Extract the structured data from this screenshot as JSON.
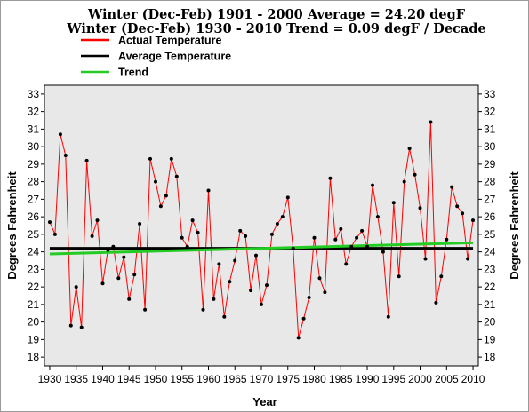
{
  "chart_data": {
    "type": "line",
    "title": "Winter (Dec-Feb) 1901 - 2000 Average = 24.20 degF",
    "subtitle": "Winter (Dec-Feb) 1930 - 2010 Trend = 0.09 degF / Decade",
    "xlabel": "Year",
    "ylabel": "Degrees Fahrenheit",
    "xlim": [
      1929,
      2011
    ],
    "ylim": [
      17.5,
      33.5
    ],
    "xticks": [
      1930,
      1935,
      1940,
      1945,
      1950,
      1955,
      1960,
      1965,
      1970,
      1975,
      1980,
      1985,
      1990,
      1995,
      2000,
      2005,
      2010
    ],
    "yticks": [
      18,
      19,
      20,
      21,
      22,
      23,
      24,
      25,
      26,
      27,
      28,
      29,
      30,
      31,
      32,
      33
    ],
    "legend_position": "top-left",
    "grid": false,
    "colors": {
      "actual": "#ff0000",
      "average": "#000000",
      "trend": "#22cc22",
      "plot_background": "#e8e8e8",
      "points": "#000000"
    },
    "series": [
      {
        "name": "Actual Temperature",
        "x": [
          1930,
          1931,
          1932,
          1933,
          1934,
          1935,
          1936,
          1937,
          1938,
          1939,
          1940,
          1941,
          1942,
          1943,
          1944,
          1945,
          1946,
          1947,
          1948,
          1949,
          1950,
          1951,
          1952,
          1953,
          1954,
          1955,
          1956,
          1957,
          1958,
          1959,
          1960,
          1961,
          1962,
          1963,
          1964,
          1965,
          1966,
          1967,
          1968,
          1969,
          1970,
          1971,
          1972,
          1973,
          1974,
          1975,
          1976,
          1977,
          1978,
          1979,
          1980,
          1981,
          1982,
          1983,
          1984,
          1985,
          1986,
          1987,
          1988,
          1989,
          1990,
          1991,
          1992,
          1993,
          1994,
          1995,
          1996,
          1997,
          1998,
          1999,
          2000,
          2001,
          2002,
          2003,
          2004,
          2005,
          2006,
          2007,
          2008,
          2009,
          2010
        ],
        "values": [
          25.7,
          25.0,
          30.7,
          29.5,
          19.8,
          22.0,
          19.7,
          29.2,
          24.9,
          25.8,
          22.2,
          24.1,
          24.3,
          22.5,
          23.7,
          21.3,
          22.7,
          25.6,
          20.7,
          29.3,
          28.0,
          26.6,
          27.2,
          29.3,
          28.3,
          24.8,
          24.3,
          25.8,
          25.1,
          20.7,
          27.5,
          21.3,
          23.3,
          20.3,
          22.3,
          23.5,
          25.2,
          24.9,
          21.8,
          23.8,
          21.0,
          22.1,
          25.0,
          25.6,
          26.0,
          27.1,
          24.2,
          19.1,
          20.2,
          21.4,
          24.8,
          22.5,
          21.7,
          28.2,
          24.7,
          25.3,
          23.3,
          24.3,
          24.8,
          25.2,
          24.3,
          27.8,
          26.0,
          24.0,
          20.3,
          26.8,
          22.6,
          28.0,
          29.9,
          28.4,
          26.5,
          23.6,
          31.4,
          21.1,
          22.6,
          24.7,
          27.7,
          26.6,
          26.2,
          23.6,
          25.8
        ]
      },
      {
        "name": "Average Temperature",
        "x": [
          1930,
          2010
        ],
        "values": [
          24.2,
          24.2
        ]
      },
      {
        "name": "Trend",
        "x": [
          1930,
          2010
        ],
        "values": [
          23.88,
          24.52
        ]
      }
    ]
  }
}
